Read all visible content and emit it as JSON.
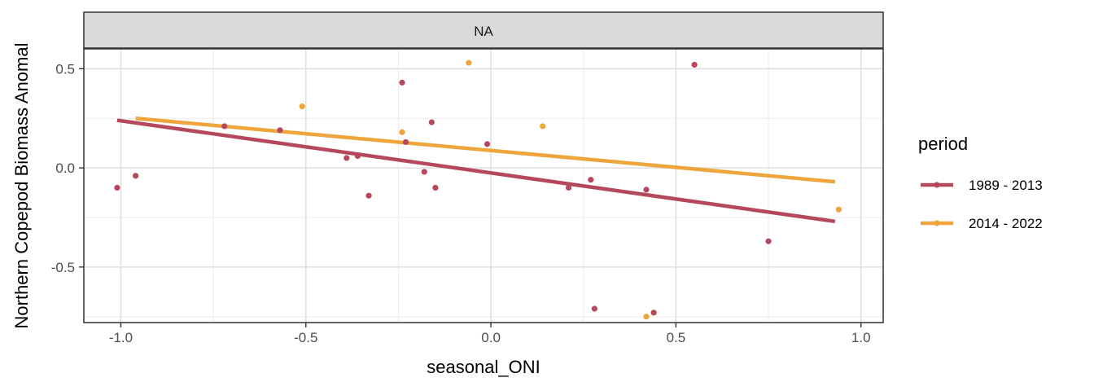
{
  "chart_data": {
    "type": "scatter",
    "facet_label": "NA",
    "xlabel": "seasonal_ONI",
    "ylabel": "Northern Copepod Biomass Anomal",
    "xlim": [
      -1.1,
      1.06
    ],
    "ylim": [
      -0.78,
      0.6
    ],
    "xticks": [
      -1.0,
      -0.5,
      0.0,
      0.5,
      1.0
    ],
    "xtick_labels": [
      "-1.0",
      "-0.5",
      "0.0",
      "0.5",
      "1.0"
    ],
    "yticks": [
      -0.5,
      0.0,
      0.5
    ],
    "ytick_labels": [
      "-0.5",
      "0.0",
      "0.5"
    ],
    "grid": true,
    "legend": {
      "title": "period",
      "position": "right"
    },
    "series": [
      {
        "name": "1989 - 2013",
        "color": "#b5495b",
        "points": [
          [
            -1.01,
            -0.1
          ],
          [
            -0.96,
            -0.04
          ],
          [
            -0.72,
            0.21
          ],
          [
            -0.57,
            0.19
          ],
          [
            -0.39,
            0.05
          ],
          [
            -0.36,
            0.06
          ],
          [
            -0.33,
            -0.14
          ],
          [
            -0.24,
            0.43
          ],
          [
            -0.23,
            0.13
          ],
          [
            -0.18,
            -0.02
          ],
          [
            -0.16,
            0.23
          ],
          [
            -0.15,
            -0.1
          ],
          [
            -0.01,
            0.12
          ],
          [
            0.21,
            -0.1
          ],
          [
            0.27,
            -0.06
          ],
          [
            0.28,
            -0.71
          ],
          [
            0.42,
            -0.11
          ],
          [
            0.44,
            -0.73
          ],
          [
            0.55,
            0.52
          ],
          [
            0.75,
            -0.37
          ]
        ],
        "fit": [
          [
            -1.01,
            0.24
          ],
          [
            0.93,
            -0.27
          ]
        ]
      },
      {
        "name": "2014 - 2022",
        "color": "#eda53c",
        "points": [
          [
            -0.51,
            0.31
          ],
          [
            -0.24,
            0.18
          ],
          [
            -0.06,
            0.53
          ],
          [
            0.14,
            0.21
          ],
          [
            0.42,
            -0.75
          ],
          [
            0.94,
            -0.21
          ]
        ],
        "fit": [
          [
            -0.96,
            0.25
          ],
          [
            0.93,
            -0.07
          ]
        ]
      }
    ]
  }
}
